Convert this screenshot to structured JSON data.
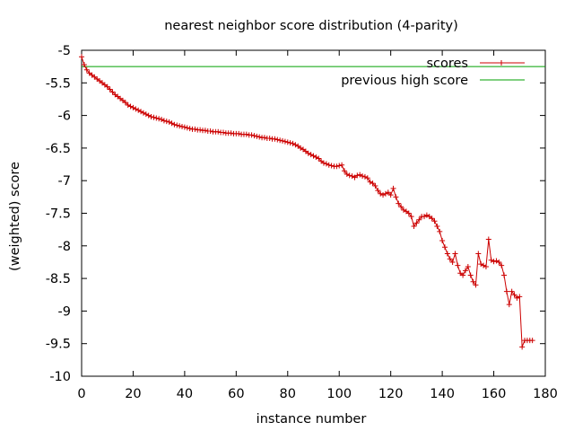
{
  "chart_data": {
    "type": "line",
    "title": "nearest neighbor score distribution (4-parity)",
    "xlabel": "instance number",
    "ylabel": "(weighted) score",
    "xlim": [
      0,
      180
    ],
    "ylim": [
      -10,
      -5
    ],
    "xticks": [
      0,
      20,
      40,
      60,
      80,
      100,
      120,
      140,
      160,
      180
    ],
    "yticks": [
      -5,
      -5.5,
      -6,
      -6.5,
      -7,
      -7.5,
      -8,
      -8.5,
      -9,
      -9.5,
      -10
    ],
    "grid": false,
    "legend_position": "top-right",
    "series": [
      {
        "name": "scores",
        "color": "#cc0000",
        "marker": "plus",
        "x": [
          0,
          1,
          2,
          3,
          4,
          5,
          6,
          7,
          8,
          9,
          10,
          11,
          12,
          13,
          14,
          15,
          16,
          17,
          18,
          19,
          20,
          21,
          22,
          23,
          24,
          25,
          26,
          27,
          28,
          29,
          30,
          31,
          32,
          33,
          34,
          35,
          36,
          37,
          38,
          39,
          40,
          41,
          42,
          43,
          44,
          45,
          46,
          47,
          48,
          49,
          50,
          51,
          52,
          53,
          54,
          55,
          56,
          57,
          58,
          59,
          60,
          61,
          62,
          63,
          64,
          65,
          66,
          67,
          68,
          69,
          70,
          71,
          72,
          73,
          74,
          75,
          76,
          77,
          78,
          79,
          80,
          81,
          82,
          83,
          84,
          85,
          86,
          87,
          88,
          89,
          90,
          91,
          92,
          93,
          94,
          95,
          96,
          97,
          98,
          99,
          100,
          101,
          102,
          103,
          104,
          105,
          106,
          107,
          108,
          109,
          110,
          111,
          112,
          113,
          114,
          115,
          116,
          117,
          118,
          119,
          120,
          121,
          122,
          123,
          124,
          125,
          126,
          127,
          128,
          129,
          130,
          131,
          132,
          133,
          134,
          135,
          136,
          137,
          138,
          139,
          140,
          141,
          142,
          143,
          144,
          145,
          146,
          147,
          148,
          149,
          150,
          151,
          152,
          153,
          154,
          155,
          156,
          157,
          158,
          159,
          160,
          161,
          162,
          163,
          164,
          165,
          166,
          167,
          168,
          169,
          170,
          171,
          172,
          173,
          174,
          175
        ],
        "y": [
          -5.1,
          -5.22,
          -5.3,
          -5.35,
          -5.38,
          -5.41,
          -5.44,
          -5.47,
          -5.5,
          -5.53,
          -5.56,
          -5.6,
          -5.64,
          -5.68,
          -5.71,
          -5.74,
          -5.77,
          -5.8,
          -5.84,
          -5.86,
          -5.88,
          -5.9,
          -5.92,
          -5.94,
          -5.96,
          -5.98,
          -6.0,
          -6.02,
          -6.03,
          -6.04,
          -6.05,
          -6.06,
          -6.08,
          -6.09,
          -6.1,
          -6.12,
          -6.14,
          -6.15,
          -6.16,
          -6.17,
          -6.18,
          -6.19,
          -6.2,
          -6.21,
          -6.21,
          -6.22,
          -6.22,
          -6.23,
          -6.23,
          -6.24,
          -6.24,
          -6.25,
          -6.25,
          -6.25,
          -6.26,
          -6.26,
          -6.27,
          -6.27,
          -6.27,
          -6.28,
          -6.28,
          -6.28,
          -6.29,
          -6.29,
          -6.29,
          -6.3,
          -6.3,
          -6.31,
          -6.32,
          -6.33,
          -6.34,
          -6.34,
          -6.35,
          -6.35,
          -6.36,
          -6.36,
          -6.37,
          -6.38,
          -6.39,
          -6.4,
          -6.41,
          -6.42,
          -6.43,
          -6.45,
          -6.47,
          -6.5,
          -6.52,
          -6.55,
          -6.58,
          -6.6,
          -6.62,
          -6.64,
          -6.66,
          -6.7,
          -6.73,
          -6.74,
          -6.76,
          -6.77,
          -6.78,
          -6.78,
          -6.77,
          -6.76,
          -6.85,
          -6.9,
          -6.92,
          -6.93,
          -6.95,
          -6.92,
          -6.91,
          -6.93,
          -6.94,
          -6.96,
          -7.02,
          -7.04,
          -7.08,
          -7.15,
          -7.2,
          -7.22,
          -7.2,
          -7.18,
          -7.22,
          -7.12,
          -7.25,
          -7.35,
          -7.4,
          -7.45,
          -7.47,
          -7.5,
          -7.55,
          -7.7,
          -7.65,
          -7.6,
          -7.55,
          -7.55,
          -7.53,
          -7.55,
          -7.58,
          -7.62,
          -7.7,
          -7.78,
          -7.92,
          -8.02,
          -8.12,
          -8.2,
          -8.25,
          -8.12,
          -8.3,
          -8.42,
          -8.45,
          -8.38,
          -8.32,
          -8.45,
          -8.55,
          -8.6,
          -8.12,
          -8.28,
          -8.3,
          -8.32,
          -7.9,
          -8.22,
          -8.24,
          -8.23,
          -8.25,
          -8.3,
          -8.45,
          -8.7,
          -8.9,
          -8.7,
          -8.75,
          -8.8,
          -8.78,
          -9.55,
          -9.45,
          -9.45,
          -9.45,
          -9.45
        ]
      },
      {
        "name": "previous high score",
        "color": "#00a000",
        "value": -5.25
      }
    ]
  }
}
